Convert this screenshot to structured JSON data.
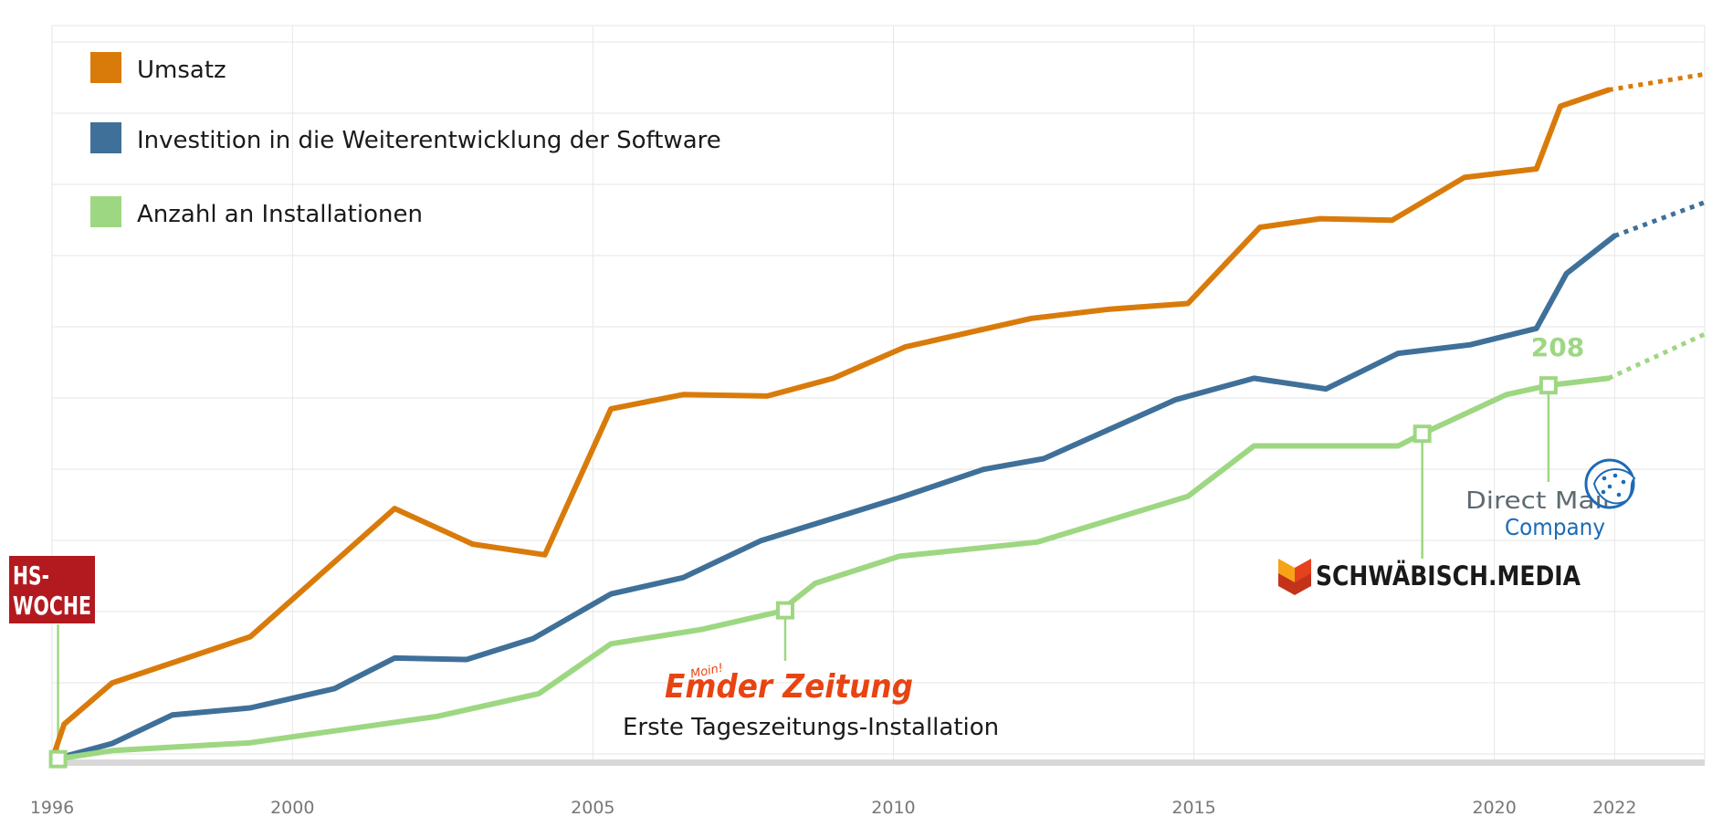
{
  "chart_data": {
    "type": "line",
    "x_ticks": [
      1996,
      2000,
      2005,
      2010,
      2015,
      2020,
      2022
    ],
    "xlim": [
      1996,
      2023.5
    ],
    "ylim": [
      0,
      100
    ],
    "grid": true,
    "legend_position": "top-left",
    "series": [
      {
        "name": "Umsatz",
        "color": "#D97B0B",
        "points": [
          [
            1996.0,
            0.2
          ],
          [
            1996.2,
            5.2
          ],
          [
            1997.0,
            11.0
          ],
          [
            1999.3,
            17.5
          ],
          [
            2001.7,
            35.5
          ],
          [
            2003.0,
            30.5
          ],
          [
            2004.2,
            29.0
          ],
          [
            2005.3,
            49.5
          ],
          [
            2006.5,
            51.5
          ],
          [
            2007.9,
            51.3
          ],
          [
            2009.0,
            53.8
          ],
          [
            2010.2,
            58.2
          ],
          [
            2012.3,
            62.2
          ],
          [
            2013.6,
            63.5
          ],
          [
            2014.9,
            64.3
          ],
          [
            2016.1,
            75.0
          ],
          [
            2017.1,
            76.2
          ],
          [
            2018.3,
            76.0
          ],
          [
            2019.5,
            82.0
          ],
          [
            2020.7,
            83.2
          ],
          [
            2021.1,
            92.0
          ],
          [
            2021.9,
            94.3
          ]
        ],
        "projection": [
          [
            2021.9,
            94.3
          ],
          [
            2023.5,
            96.5
          ]
        ]
      },
      {
        "name": "Investition in die Weiterentwicklung der Software",
        "color": "#3F7099",
        "points": [
          [
            1996.0,
            0.2
          ],
          [
            1997.0,
            2.5
          ],
          [
            1998.0,
            6.5
          ],
          [
            1999.3,
            7.5
          ],
          [
            2000.7,
            10.2
          ],
          [
            2001.7,
            14.5
          ],
          [
            2002.9,
            14.3
          ],
          [
            2004.0,
            17.2
          ],
          [
            2005.3,
            23.5
          ],
          [
            2006.5,
            25.8
          ],
          [
            2007.8,
            31.0
          ],
          [
            2010.1,
            37.0
          ],
          [
            2011.5,
            41.0
          ],
          [
            2012.5,
            42.5
          ],
          [
            2014.7,
            50.8
          ],
          [
            2016.0,
            53.8
          ],
          [
            2017.2,
            52.3
          ],
          [
            2018.4,
            57.3
          ],
          [
            2019.6,
            58.5
          ],
          [
            2020.7,
            60.8
          ],
          [
            2021.2,
            68.5
          ],
          [
            2022.0,
            73.8
          ]
        ],
        "projection": [
          [
            2022.0,
            73.8
          ],
          [
            2023.5,
            78.5
          ]
        ]
      },
      {
        "name": "Anzahl an Installationen",
        "color": "#9ED782",
        "points": [
          [
            1996.0,
            0.2
          ],
          [
            1997.0,
            1.5
          ],
          [
            1999.3,
            2.6
          ],
          [
            2002.4,
            6.3
          ],
          [
            2004.1,
            9.5
          ],
          [
            2005.3,
            16.5
          ],
          [
            2006.8,
            18.5
          ],
          [
            2008.1,
            21.0
          ],
          [
            2008.7,
            25.0
          ],
          [
            2010.1,
            28.8
          ],
          [
            2012.4,
            30.8
          ],
          [
            2014.9,
            37.2
          ],
          [
            2016.0,
            44.3
          ],
          [
            2018.4,
            44.3
          ],
          [
            2018.8,
            46.0
          ],
          [
            2020.2,
            51.5
          ],
          [
            2020.9,
            52.8
          ],
          [
            2021.9,
            53.8
          ]
        ],
        "projection": [
          [
            2021.9,
            53.8
          ],
          [
            2023.5,
            60.0
          ]
        ]
      }
    ],
    "markers": [
      {
        "x": 1996.1,
        "y": 0.3,
        "series": "Anzahl an Installationen"
      },
      {
        "x": 2008.2,
        "y": 21.2,
        "series": "Anzahl an Installationen"
      },
      {
        "x": 2018.8,
        "y": 46.0,
        "series": "Anzahl an Installationen"
      },
      {
        "x": 2020.9,
        "y": 52.8,
        "series": "Anzahl an Installationen"
      }
    ],
    "annotations": {
      "value_208": "208",
      "emder_caption": "Erste Tageszeitungs-Installation"
    }
  },
  "logos": {
    "hs_woche": {
      "line1": "HS-",
      "line2": "WOCHE",
      "color": "#B21A1F"
    },
    "emder": {
      "small": "Moin!",
      "name": "Emder Zeitung",
      "color": "#E84412"
    },
    "schwaebisch": {
      "name": "SCHWÄBISCH.MEDIA",
      "text_color": "#1A1A1A",
      "mark_color": "#E5411C",
      "mark_color2": "#F6A318"
    },
    "direct_mail": {
      "line1": "Direct Mail",
      "line2": "Company",
      "color1": "#5E6A71",
      "color2": "#1C6BB5"
    }
  }
}
